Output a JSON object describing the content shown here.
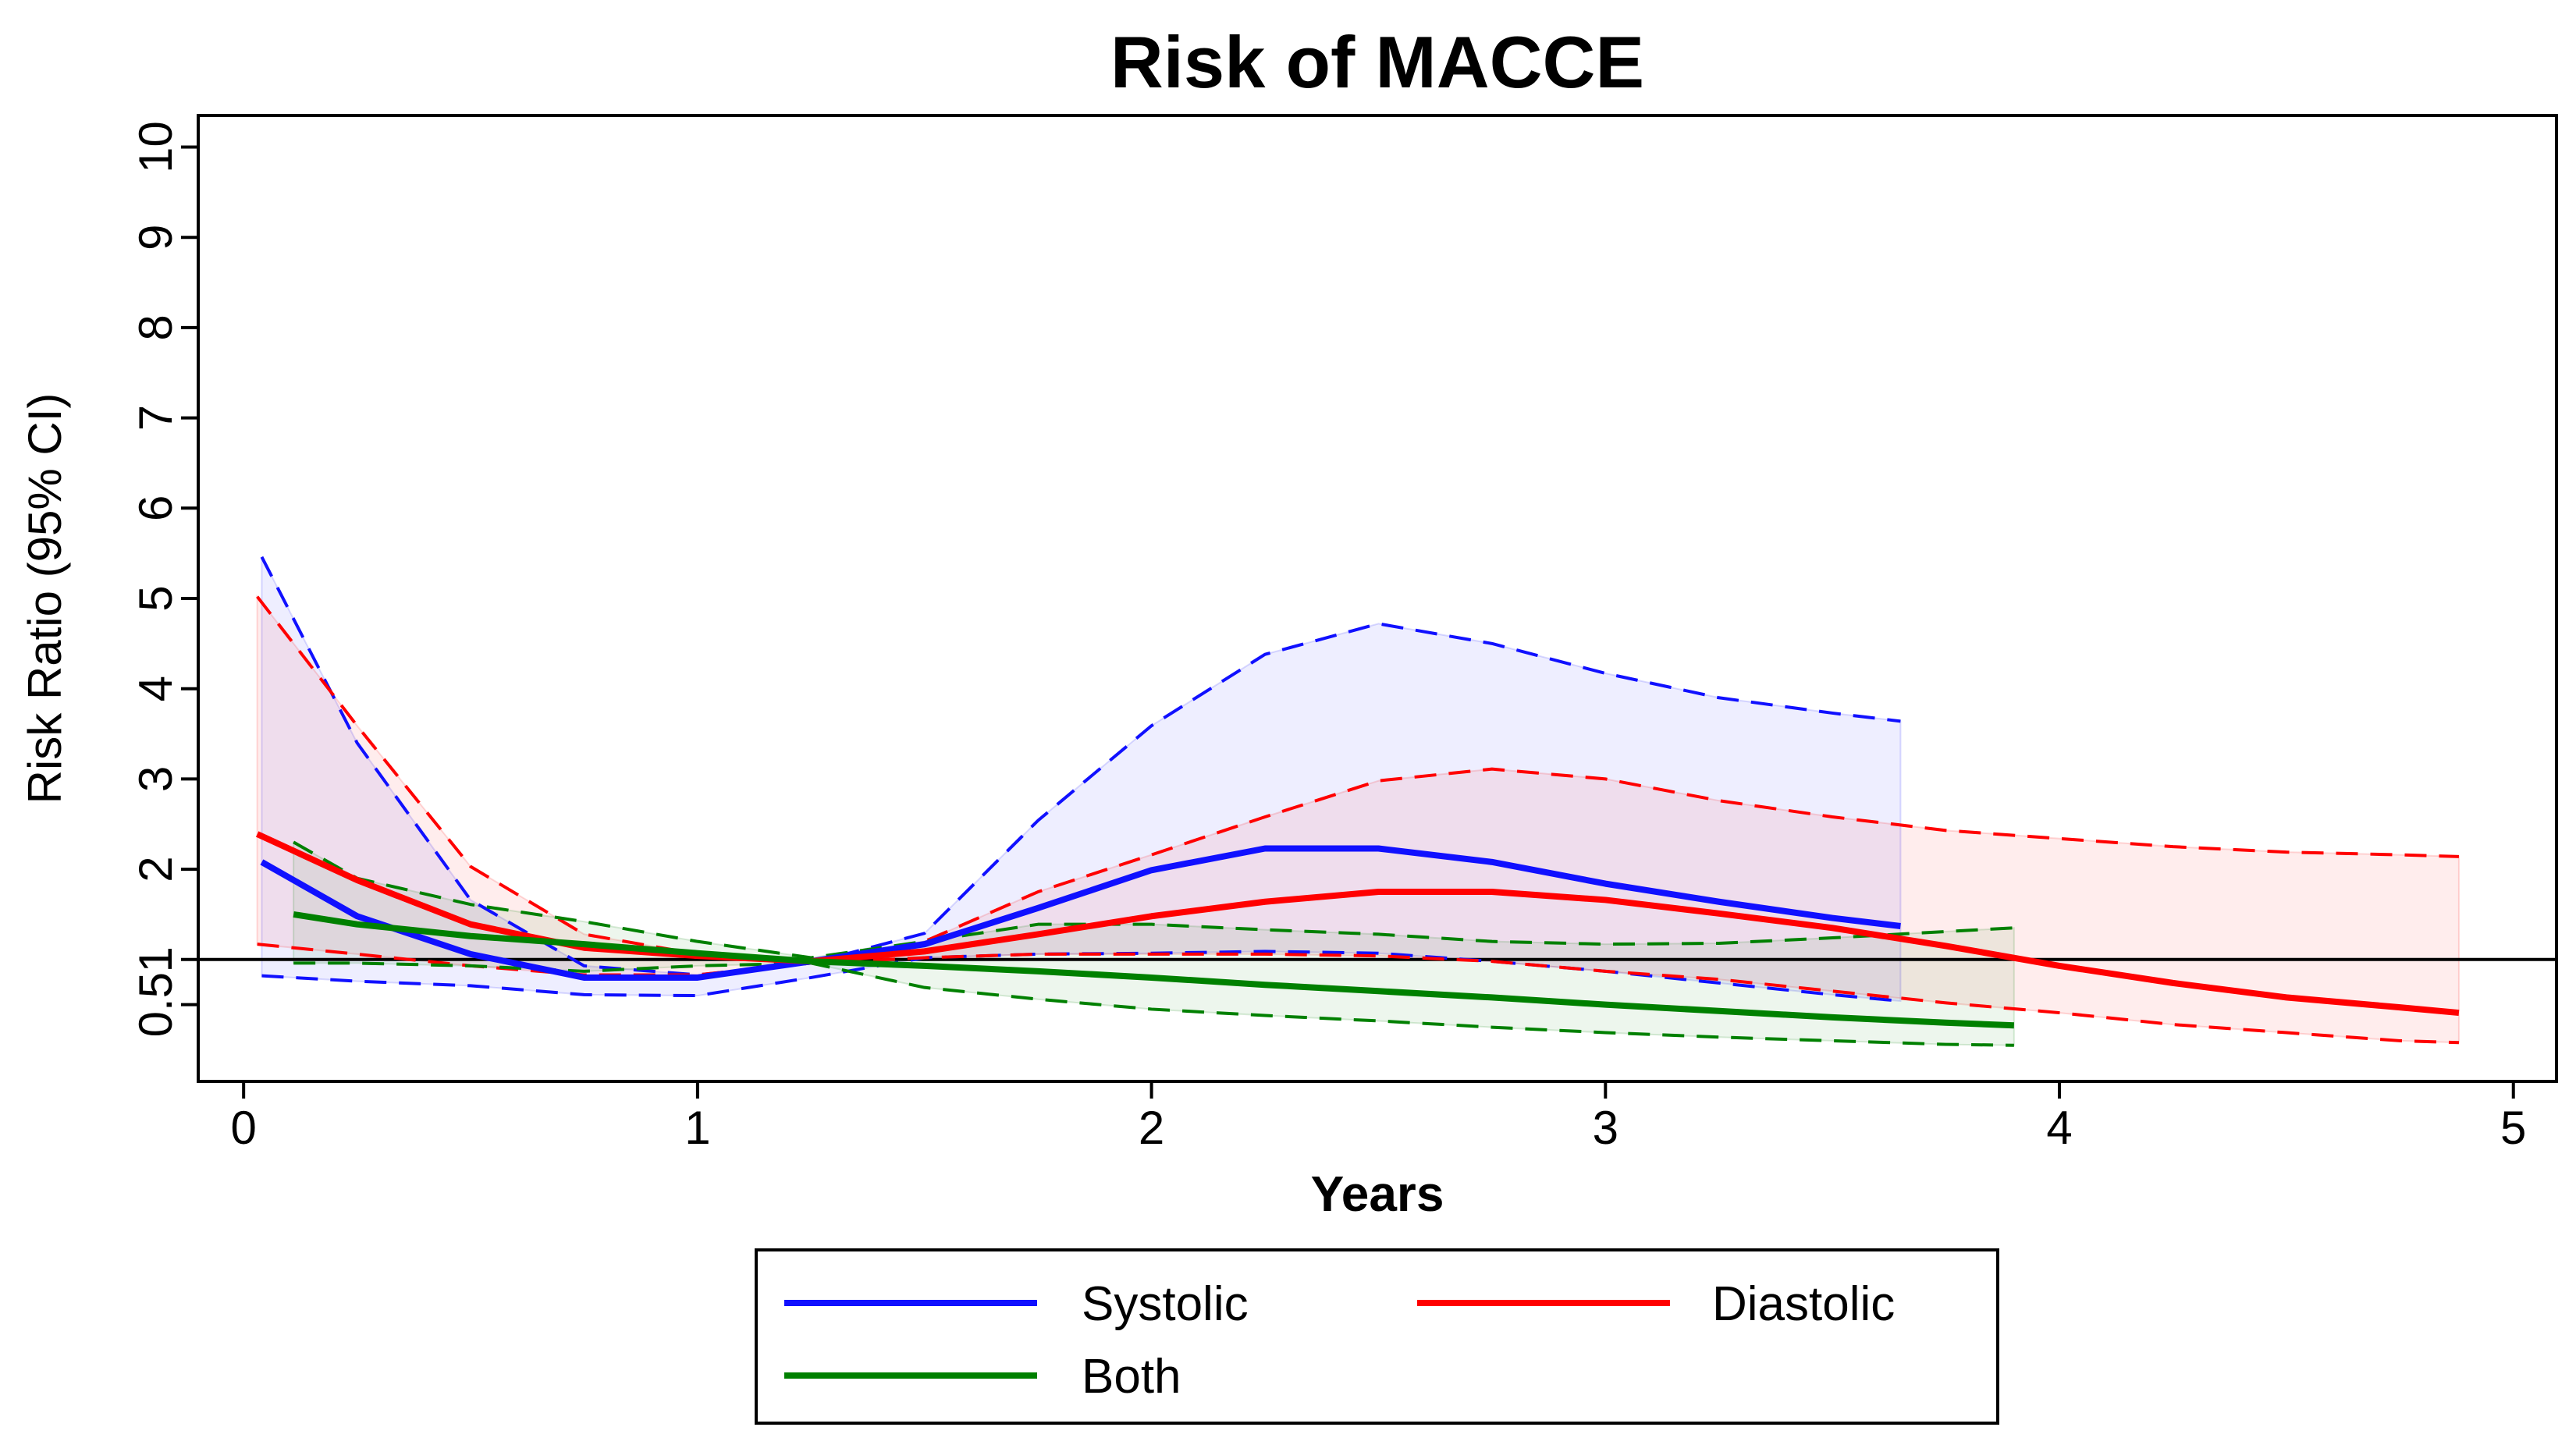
{
  "chart_data": {
    "type": "line",
    "title": "Risk of MACCE",
    "x_label": "Years",
    "y_label": "Risk Ratio (95% CI)",
    "xlim": [
      -0.1,
      5.095
    ],
    "ylim": [
      -0.35,
      10.35
    ],
    "xticks": [
      0,
      1,
      2,
      3,
      4,
      5
    ],
    "yticks": [
      0.5,
      1,
      2,
      3,
      4,
      5,
      6,
      7,
      8,
      9,
      10
    ],
    "refline": 1,
    "series": [
      {
        "name": "Systolic",
        "color": "#1010ff",
        "x": [
          0.04,
          0.25,
          0.5,
          0.75,
          1.0,
          1.25,
          1.5,
          1.75,
          2.0,
          2.25,
          2.5,
          2.75,
          3.0,
          3.25,
          3.5,
          3.65
        ],
        "values": [
          2.08,
          1.48,
          1.06,
          0.8,
          0.8,
          0.98,
          1.17,
          1.57,
          1.99,
          2.23,
          2.23,
          2.08,
          1.84,
          1.64,
          1.46,
          1.37
        ],
        "upper": [
          5.46,
          3.4,
          1.66,
          0.93,
          0.83,
          0.96,
          1.29,
          2.54,
          3.59,
          4.38,
          4.72,
          4.5,
          4.17,
          3.9,
          3.73,
          3.64
        ],
        "lower": [
          0.82,
          0.76,
          0.71,
          0.61,
          0.6,
          0.8,
          1.02,
          1.06,
          1.07,
          1.09,
          1.07,
          0.98,
          0.87,
          0.74,
          0.61,
          0.54
        ]
      },
      {
        "name": "Diastolic",
        "color": "#ff0000",
        "x": [
          0.03,
          0.25,
          0.5,
          0.75,
          1.0,
          1.25,
          1.5,
          1.75,
          2.0,
          2.25,
          2.5,
          2.75,
          3.0,
          3.25,
          3.5,
          3.75,
          4.0,
          4.25,
          4.5,
          4.75,
          4.88
        ],
        "values": [
          2.39,
          1.88,
          1.39,
          1.13,
          1.04,
          0.98,
          1.09,
          1.28,
          1.48,
          1.64,
          1.75,
          1.75,
          1.66,
          1.51,
          1.35,
          1.15,
          0.93,
          0.74,
          0.58,
          0.47,
          0.41
        ],
        "upper": [
          5.02,
          3.59,
          2.03,
          1.28,
          1.06,
          0.96,
          1.2,
          1.75,
          2.16,
          2.58,
          2.98,
          3.11,
          3.0,
          2.76,
          2.58,
          2.43,
          2.34,
          2.25,
          2.19,
          2.16,
          2.14
        ],
        "lower": [
          1.17,
          1.06,
          0.93,
          0.83,
          0.83,
          0.96,
          1.02,
          1.06,
          1.06,
          1.06,
          1.04,
          0.98,
          0.87,
          0.78,
          0.65,
          0.52,
          0.41,
          0.28,
          0.19,
          0.1,
          0.08
        ]
      },
      {
        "name": "Both",
        "color": "#008000",
        "x": [
          0.11,
          0.25,
          0.5,
          0.75,
          1.0,
          1.25,
          1.5,
          1.75,
          2.0,
          2.25,
          2.5,
          2.75,
          3.0,
          3.25,
          3.5,
          3.75,
          3.9
        ],
        "values": [
          1.5,
          1.39,
          1.26,
          1.17,
          1.07,
          0.98,
          0.93,
          0.87,
          0.8,
          0.72,
          0.65,
          0.58,
          0.5,
          0.43,
          0.36,
          0.3,
          0.27
        ],
        "upper": [
          2.3,
          1.9,
          1.61,
          1.42,
          1.2,
          1.02,
          1.2,
          1.39,
          1.39,
          1.33,
          1.28,
          1.2,
          1.17,
          1.18,
          1.24,
          1.31,
          1.35
        ],
        "lower": [
          0.96,
          0.96,
          0.93,
          0.87,
          0.93,
          0.96,
          0.69,
          0.56,
          0.45,
          0.38,
          0.32,
          0.25,
          0.19,
          0.14,
          0.1,
          0.06,
          0.05
        ]
      }
    ]
  }
}
